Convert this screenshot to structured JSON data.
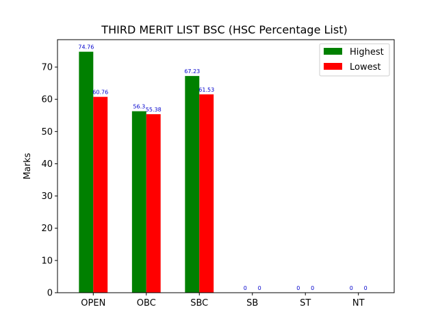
{
  "chart_data": {
    "type": "bar",
    "title": "THIRD MERIT LIST BSC (HSC Percentage List)",
    "xlabel": "",
    "ylabel": "Marks",
    "categories": [
      "OPEN",
      "OBC",
      "SBC",
      "SB",
      "ST",
      "NT"
    ],
    "series": [
      {
        "name": "Highest",
        "color": "#008000",
        "values": [
          74.76,
          56.3,
          67.23,
          0,
          0,
          0
        ],
        "labels": [
          "74.76",
          "56.3",
          "67.23",
          "0",
          "0",
          "0"
        ]
      },
      {
        "name": "Lowest",
        "color": "#ff0000",
        "values": [
          60.76,
          55.38,
          61.53,
          0,
          0,
          0
        ],
        "labels": [
          "60.76",
          "55.38",
          "61.53",
          "0",
          "0",
          "0"
        ]
      }
    ],
    "ylim": [
      0,
      78.5
    ],
    "yticks": [
      0,
      10,
      20,
      30,
      40,
      50,
      60,
      70
    ],
    "legend_position": "top-right",
    "grid": false,
    "label_color": "#0000cc"
  }
}
